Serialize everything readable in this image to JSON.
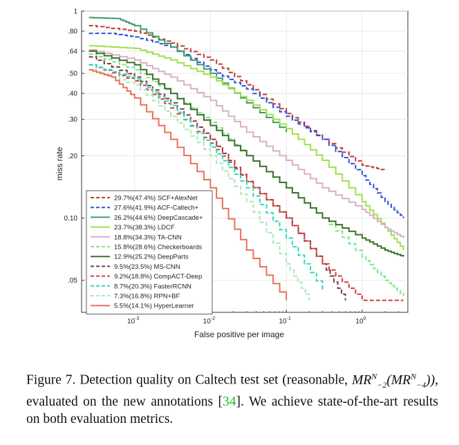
{
  "chart_data": {
    "type": "line",
    "xlabel": "False positive per image",
    "ylabel": "miss rate",
    "x_scale": "log",
    "y_scale": "log",
    "xlim": [
      0.0002,
      4
    ],
    "ylim": [
      0.035,
      1
    ],
    "x_ticks": [
      {
        "value": 0.001,
        "base": "10",
        "exp": "-3"
      },
      {
        "value": 0.01,
        "base": "10",
        "exp": "-2"
      },
      {
        "value": 0.1,
        "base": "10",
        "exp": "-1"
      },
      {
        "value": 1,
        "base": "10",
        "exp": "0"
      }
    ],
    "y_ticks": [
      {
        "value": 1,
        "label": "1"
      },
      {
        "value": 0.8,
        "label": ".80"
      },
      {
        "value": 0.64,
        "label": ".64"
      },
      {
        "value": 0.5,
        "label": ".50"
      },
      {
        "value": 0.4,
        "label": ".40"
      },
      {
        "value": 0.3,
        "label": ".30"
      },
      {
        "value": 0.2,
        "label": ".20"
      },
      {
        "value": 0.1,
        "label": "0.10"
      },
      {
        "value": 0.05,
        "label": ".05"
      }
    ],
    "legend_position": "bottom-left",
    "series": [
      {
        "name": "29.7%(47.4%) SCF+AlexNet",
        "color": "#c0392b",
        "dash": true,
        "x": [
          0.00025,
          0.001,
          0.003,
          0.01,
          0.03,
          0.1,
          0.3,
          1,
          2
        ],
        "y": [
          0.85,
          0.8,
          0.7,
          0.58,
          0.44,
          0.32,
          0.24,
          0.18,
          0.17
        ]
      },
      {
        "name": "27.6%(41.9%) ACF-Caltech+",
        "color": "#2d4fd6",
        "dash": true,
        "x": [
          0.00025,
          0.0005,
          0.001,
          0.003,
          0.01,
          0.03,
          0.1,
          0.3,
          1,
          2,
          3.5
        ],
        "y": [
          0.78,
          0.78,
          0.75,
          0.67,
          0.52,
          0.42,
          0.31,
          0.24,
          0.16,
          0.12,
          0.1
        ]
      },
      {
        "name": "26.2%(44.6%) DeepCascade+",
        "color": "#3d9a6c",
        "dash": false,
        "x": [
          0.00025,
          0.0006,
          0.001,
          0.003,
          0.01,
          0.03,
          0.1
        ],
        "y": [
          0.93,
          0.92,
          0.85,
          0.67,
          0.5,
          0.36,
          0.26
        ]
      },
      {
        "name": "23.7%(38.3%) LDCF",
        "color": "#9ee04a",
        "dash": false,
        "x": [
          0.00025,
          0.001,
          0.003,
          0.01,
          0.03,
          0.1,
          0.3,
          1,
          2,
          3.5
        ],
        "y": [
          0.68,
          0.66,
          0.58,
          0.48,
          0.37,
          0.27,
          0.19,
          0.12,
          0.09,
          0.07
        ]
      },
      {
        "name": "18.8%(34.3%) TA-CNN",
        "color": "#d8b0c0",
        "dash": false,
        "x": [
          0.00025,
          0.001,
          0.003,
          0.01,
          0.03,
          0.1,
          0.3,
          1,
          2,
          3.5
        ],
        "y": [
          0.65,
          0.58,
          0.48,
          0.37,
          0.26,
          0.19,
          0.14,
          0.11,
          0.09,
          0.08
        ]
      },
      {
        "name": "15.8%(28.6%) Checkerboards",
        "color": "#7ae68a",
        "dash": true,
        "x": [
          0.00025,
          0.001,
          0.003,
          0.01,
          0.03,
          0.1,
          0.3,
          1,
          2,
          3.5
        ],
        "y": [
          0.62,
          0.52,
          0.4,
          0.29,
          0.2,
          0.14,
          0.1,
          0.065,
          0.05,
          0.042
        ]
      },
      {
        "name": "12.9%(25.2%) DeepParts",
        "color": "#3c6e2a",
        "dash": false,
        "x": [
          0.00025,
          0.001,
          0.003,
          0.01,
          0.03,
          0.1,
          0.3,
          1,
          2,
          3.5
        ],
        "y": [
          0.64,
          0.55,
          0.4,
          0.28,
          0.2,
          0.14,
          0.1,
          0.08,
          0.07,
          0.065
        ]
      },
      {
        "name": "9.5%(23.5%) MS-CNN",
        "color": "#7d3b3b",
        "dash": true,
        "x": [
          0.00025,
          0.001,
          0.003,
          0.01,
          0.03,
          0.1,
          0.3,
          0.6
        ],
        "y": [
          0.6,
          0.48,
          0.36,
          0.24,
          0.15,
          0.1,
          0.06,
          0.04
        ]
      },
      {
        "name": "9.2%(18.8%) CompACT-Deep",
        "color": "#d63a3a",
        "dash": true,
        "x": [
          0.00025,
          0.001,
          0.003,
          0.01,
          0.03,
          0.1,
          0.3,
          1,
          3.5
        ],
        "y": [
          0.55,
          0.46,
          0.34,
          0.23,
          0.15,
          0.1,
          0.06,
          0.04,
          0.04
        ]
      },
      {
        "name": "8.7%(20.3%) FasterRCNN",
        "color": "#2fd8b8",
        "dash": true,
        "x": [
          0.00025,
          0.001,
          0.003,
          0.01,
          0.03,
          0.1,
          0.3
        ],
        "y": [
          0.55,
          0.47,
          0.35,
          0.22,
          0.14,
          0.08,
          0.045
        ]
      },
      {
        "name": "7.3%(16.8%) RPN+BF",
        "color": "#a8e8b8",
        "dash": true,
        "x": [
          0.00025,
          0.001,
          0.003,
          0.01,
          0.03,
          0.1,
          0.2
        ],
        "y": [
          0.52,
          0.44,
          0.31,
          0.2,
          0.12,
          0.06,
          0.04
        ]
      },
      {
        "name": "5.5%(14.1%) HyperLearner",
        "color": "#e8705a",
        "dash": false,
        "x": [
          0.00025,
          0.0005,
          0.001,
          0.003,
          0.01,
          0.03,
          0.1
        ],
        "y": [
          0.52,
          0.48,
          0.38,
          0.24,
          0.14,
          0.07,
          0.04
        ]
      }
    ]
  },
  "caption": {
    "prefix": "Figure 7. Detection quality on Caltech test set (reasonable,",
    "math_a": "MR",
    "sub_a": "−2",
    "sup_a": "N",
    "math_b": "MR",
    "sub_b": "−4",
    "sup_b": "N",
    "middle": ", evaluated on the new annotations [",
    "ref": "34",
    "suffix": "]. We achieve state-of-the-art results on both evaluation metrics."
  }
}
